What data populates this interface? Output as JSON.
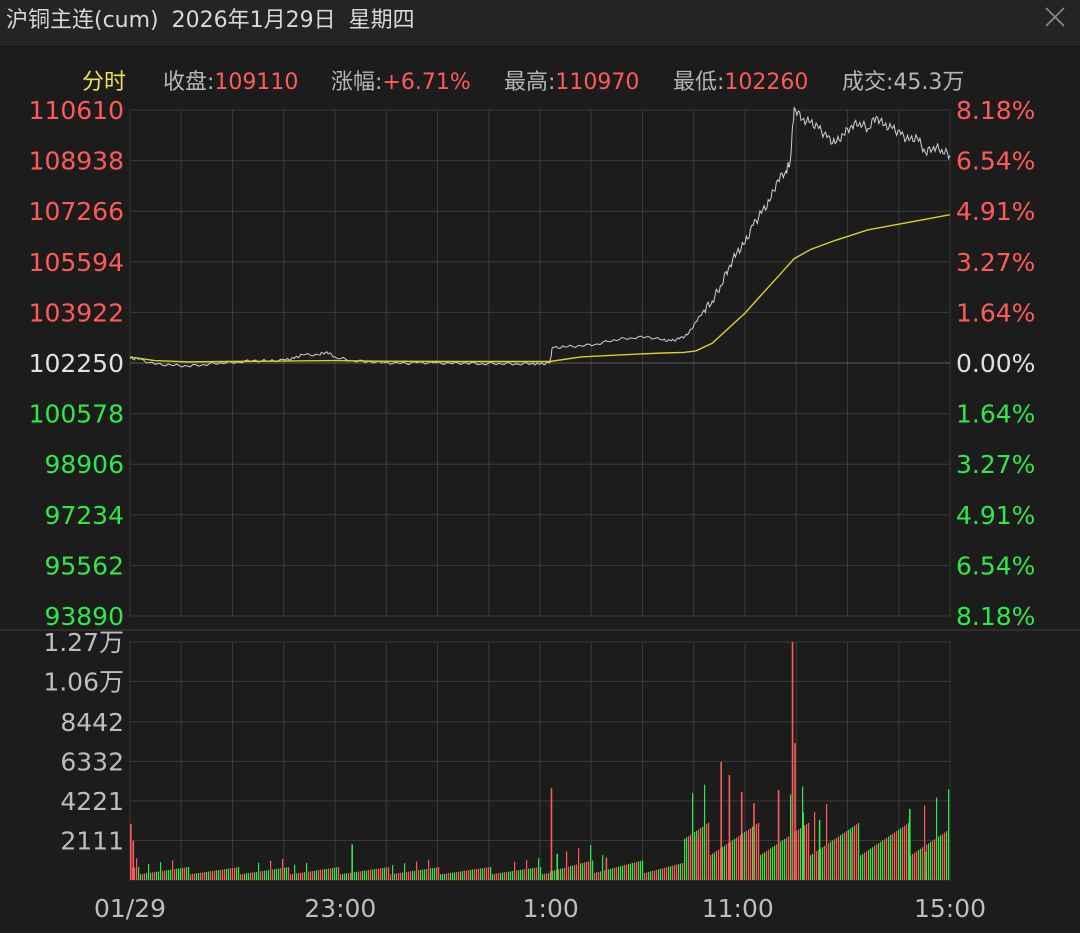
{
  "window": {
    "symbol": "沪铜主连(cum)",
    "date": "2026年1月29日",
    "weekday": "星期四",
    "close_icon": "close-icon"
  },
  "info": {
    "mode": "分时",
    "close_label": "收盘:",
    "close_value": "109110",
    "change_label": "涨幅:",
    "change_value": "+6.71%",
    "high_label": "最高:",
    "high_value": "110970",
    "low_label": "最低:",
    "low_value": "102260",
    "volume_label": "成交:",
    "volume_value": "45.3万"
  },
  "colors": {
    "up": "#ff5a5a",
    "down": "#2ee84a",
    "neutral": "#e0e0e0",
    "price_line": "#d0d0d0",
    "avg_line": "#d6d224",
    "grid": "#3a3a3a",
    "mode_label": "#f2e24a"
  },
  "chart_data": [
    {
      "type": "line",
      "prev_close": 102250,
      "ylim": [
        93890,
        110610
      ],
      "y_ticks_left": [
        "110610",
        "108938",
        "107266",
        "105594",
        "103922",
        "102250",
        "100578",
        "98906",
        "97234",
        "95562",
        "93890"
      ],
      "y_ticks_right": [
        "8.18%",
        "6.54%",
        "4.91%",
        "3.27%",
        "1.64%",
        "0.00%",
        "1.64%",
        "3.27%",
        "4.91%",
        "6.54%",
        "8.18%"
      ],
      "x_ticks": [
        "01/29",
        "23:00",
        "1:00",
        "11:00",
        "15:00"
      ],
      "x_tick_positions": [
        0,
        0.2565,
        0.5131,
        0.7412,
        1.0
      ],
      "series": [
        {
          "points": [
            [
              0,
              102400
            ],
            [
              0.01,
              102380
            ],
            [
              0.03,
              102210
            ],
            [
              0.05,
              102180
            ],
            [
              0.07,
              102150
            ],
            [
              0.09,
              102200
            ],
            [
              0.11,
              102260
            ],
            [
              0.13,
              102280
            ],
            [
              0.15,
              102330
            ],
            [
              0.17,
              102310
            ],
            [
              0.19,
              102350
            ],
            [
              0.2,
              102400
            ],
            [
              0.21,
              102520
            ],
            [
              0.23,
              102520
            ],
            [
              0.24,
              102620
            ],
            [
              0.25,
              102450
            ],
            [
              0.27,
              102330
            ],
            [
              0.29,
              102300
            ],
            [
              0.31,
              102260
            ],
            [
              0.33,
              102230
            ],
            [
              0.35,
              102260
            ],
            [
              0.37,
              102250
            ],
            [
              0.39,
              102240
            ],
            [
              0.41,
              102250
            ],
            [
              0.43,
              102230
            ],
            [
              0.45,
              102240
            ],
            [
              0.47,
              102220
            ],
            [
              0.49,
              102230
            ],
            [
              0.5,
              102210
            ],
            [
              0.512,
              102250
            ],
            [
              0.515,
              102750
            ],
            [
              0.53,
              102780
            ],
            [
              0.55,
              102820
            ],
            [
              0.57,
              102880
            ],
            [
              0.59,
              103020
            ],
            [
              0.61,
              103080
            ],
            [
              0.63,
              103120
            ],
            [
              0.65,
              103010
            ],
            [
              0.66,
              102980
            ],
            [
              0.67,
              103050
            ],
            [
              0.68,
              103180
            ],
            [
              0.69,
              103600
            ],
            [
              0.7,
              104000
            ],
            [
              0.71,
              104300
            ],
            [
              0.72,
              104800
            ],
            [
              0.73,
              105400
            ],
            [
              0.74,
              105900
            ],
            [
              0.75,
              106200
            ],
            [
              0.76,
              106800
            ],
            [
              0.77,
              107200
            ],
            [
              0.78,
              107600
            ],
            [
              0.79,
              108300
            ],
            [
              0.8,
              108600
            ],
            [
              0.805,
              108900
            ],
            [
              0.81,
              110700
            ],
            [
              0.82,
              110300
            ],
            [
              0.83,
              110200
            ],
            [
              0.84,
              110000
            ],
            [
              0.85,
              109700
            ],
            [
              0.86,
              109500
            ],
            [
              0.87,
              109800
            ],
            [
              0.88,
              110100
            ],
            [
              0.89,
              110200
            ],
            [
              0.9,
              110000
            ],
            [
              0.91,
              110400
            ],
            [
              0.92,
              110100
            ],
            [
              0.93,
              110000
            ],
            [
              0.94,
              109800
            ],
            [
              0.95,
              109600
            ],
            [
              0.96,
              109700
            ],
            [
              0.97,
              109200
            ],
            [
              0.98,
              109400
            ],
            [
              0.99,
              109300
            ],
            [
              1.0,
              109110
            ]
          ]
        },
        {
          "points": [
            [
              0,
              102450
            ],
            [
              0.03,
              102330
            ],
            [
              0.07,
              102290
            ],
            [
              0.12,
              102300
            ],
            [
              0.2,
              102320
            ],
            [
              0.25,
              102330
            ],
            [
              0.3,
              102310
            ],
            [
              0.4,
              102300
            ],
            [
              0.512,
              102300
            ],
            [
              0.55,
              102450
            ],
            [
              0.6,
              102520
            ],
            [
              0.65,
              102580
            ],
            [
              0.675,
              102600
            ],
            [
              0.69,
              102650
            ],
            [
              0.71,
              102900
            ],
            [
              0.73,
              103400
            ],
            [
              0.75,
              103900
            ],
            [
              0.77,
              104500
            ],
            [
              0.79,
              105100
            ],
            [
              0.81,
              105700
            ],
            [
              0.83,
              106000
            ],
            [
              0.86,
              106300
            ],
            [
              0.9,
              106650
            ],
            [
              0.94,
              106850
            ],
            [
              0.97,
              107000
            ],
            [
              1.0,
              107150
            ]
          ]
        }
      ]
    },
    {
      "type": "bar",
      "ylim": [
        0,
        12700
      ],
      "y_ticks": [
        "1.27万",
        "1.06万",
        "8442",
        "6332",
        "4221",
        "2111"
      ],
      "x_ticks": [
        "01/29",
        "23:00",
        "1:00",
        "11:00",
        "15:00"
      ],
      "segments": [
        {
          "x": [
            0.0,
            0.512
          ],
          "base": 300,
          "jitter": 400,
          "seed": 3
        },
        {
          "x": [
            0.512,
            0.675
          ],
          "base": 350,
          "jitter": 700,
          "seed": 11
        },
        {
          "x": [
            0.675,
            1.0
          ],
          "base": 1300,
          "jitter": 1800,
          "seed": 29
        }
      ],
      "spikes": [
        {
          "x": 0.0,
          "value": 3000,
          "dir": "up"
        },
        {
          "x": 0.003,
          "value": 2100,
          "dir": "up"
        },
        {
          "x": 0.27,
          "value": 1900,
          "dir": "down"
        },
        {
          "x": 0.513,
          "value": 4900,
          "dir": "up"
        },
        {
          "x": 0.52,
          "value": 1400,
          "dir": "down"
        },
        {
          "x": 0.58,
          "value": 1200,
          "dir": "up"
        },
        {
          "x": 0.69,
          "value": 2300,
          "dir": "up"
        },
        {
          "x": 0.72,
          "value": 6300,
          "dir": "up"
        },
        {
          "x": 0.73,
          "value": 5600,
          "dir": "up"
        },
        {
          "x": 0.745,
          "value": 4700,
          "dir": "up"
        },
        {
          "x": 0.76,
          "value": 4100,
          "dir": "up"
        },
        {
          "x": 0.79,
          "value": 4800,
          "dir": "up"
        },
        {
          "x": 0.807,
          "value": 12700,
          "dir": "up"
        },
        {
          "x": 0.81,
          "value": 7300,
          "dir": "up"
        },
        {
          "x": 0.82,
          "value": 3600,
          "dir": "down"
        },
        {
          "x": 0.84,
          "value": 3200,
          "dir": "down"
        },
        {
          "x": 0.88,
          "value": 2500,
          "dir": "up"
        },
        {
          "x": 0.95,
          "value": 3800,
          "dir": "down"
        },
        {
          "x": 0.97,
          "value": 1500,
          "dir": "down"
        }
      ]
    }
  ]
}
